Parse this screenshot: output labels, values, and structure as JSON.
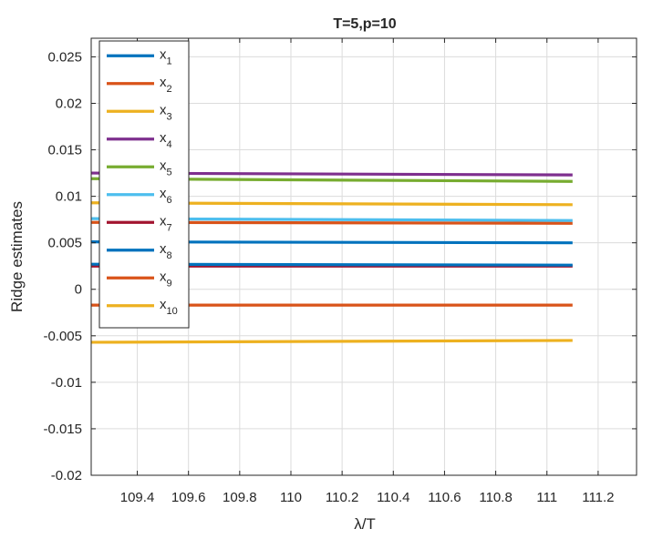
{
  "chart_data": {
    "type": "line",
    "title": "T=5,p=10",
    "xlabel": "λ/T",
    "ylabel": "Ridge estimates",
    "xlim": [
      109.22,
      111.35
    ],
    "ylim": [
      -0.02,
      0.027
    ],
    "xticks": [
      109.4,
      109.6,
      109.8,
      110,
      110.2,
      110.4,
      110.6,
      110.8,
      111,
      111.2
    ],
    "xtick_labels": [
      "109.4",
      "109.6",
      "109.8",
      "110",
      "110.2",
      "110.4",
      "110.6",
      "110.8",
      "111",
      "111.2"
    ],
    "yticks": [
      -0.02,
      -0.015,
      -0.01,
      -0.005,
      0,
      0.005,
      0.01,
      0.015,
      0.02,
      0.025
    ],
    "ytick_labels": [
      "-0.02",
      "-0.015",
      "-0.01",
      "-0.005",
      "0",
      "0.005",
      "0.01",
      "0.015",
      "0.02",
      "0.025"
    ],
    "grid": true,
    "legend_position": "top-left",
    "series": [
      {
        "name": "x1",
        "label_base": "x",
        "label_sub": "1",
        "color": "#0072BD",
        "x": [
          109.22,
          111.1
        ],
        "values": [
          0.0051,
          0.005
        ]
      },
      {
        "name": "x2",
        "label_base": "x",
        "label_sub": "2",
        "color": "#D95319",
        "x": [
          109.22,
          111.1
        ],
        "values": [
          0.0072,
          0.0071
        ]
      },
      {
        "name": "x3",
        "label_base": "x",
        "label_sub": "3",
        "color": "#EDB120",
        "x": [
          109.22,
          111.1
        ],
        "values": [
          0.0093,
          0.0091
        ]
      },
      {
        "name": "x4",
        "label_base": "x",
        "label_sub": "4",
        "color": "#7E2F8E",
        "x": [
          109.22,
          111.1
        ],
        "values": [
          0.0125,
          0.0123
        ]
      },
      {
        "name": "x5",
        "label_base": "x",
        "label_sub": "5",
        "color": "#77AC30",
        "x": [
          109.22,
          111.1
        ],
        "values": [
          0.0119,
          0.0116
        ]
      },
      {
        "name": "x6",
        "label_base": "x",
        "label_sub": "6",
        "color": "#4DBEEE",
        "x": [
          109.22,
          111.1
        ],
        "values": [
          0.0076,
          0.0074
        ]
      },
      {
        "name": "x7",
        "label_base": "x",
        "label_sub": "7",
        "color": "#A2142F",
        "x": [
          109.22,
          111.1
        ],
        "values": [
          0.0025,
          0.0025
        ]
      },
      {
        "name": "x8",
        "label_base": "x",
        "label_sub": "8",
        "color": "#0072BD",
        "x": [
          109.22,
          111.1
        ],
        "values": [
          0.0027,
          0.0026
        ]
      },
      {
        "name": "x9",
        "label_base": "x",
        "label_sub": "9",
        "color": "#D95319",
        "x": [
          109.22,
          111.1
        ],
        "values": [
          -0.0017,
          -0.0017
        ]
      },
      {
        "name": "x10",
        "label_base": "x",
        "label_sub": "10",
        "color": "#EDB120",
        "x": [
          109.22,
          111.1
        ],
        "values": [
          -0.0057,
          -0.0055
        ]
      }
    ]
  }
}
